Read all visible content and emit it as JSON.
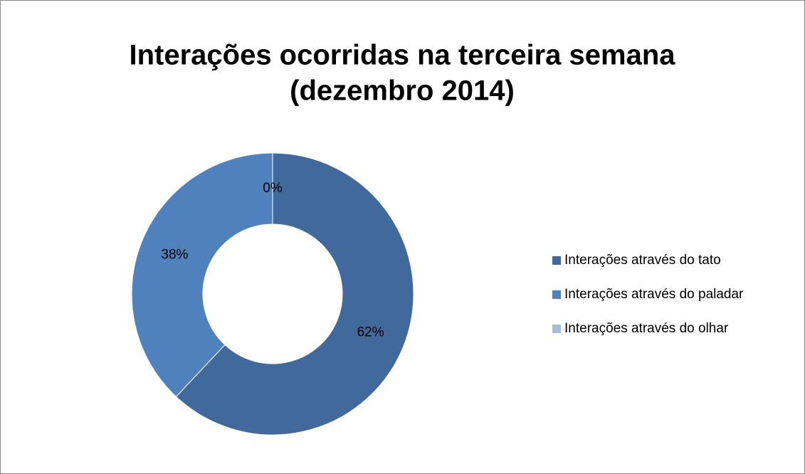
{
  "chart_data": {
    "type": "donut",
    "title": [
      "Interações ocorridas na terceira semana",
      "(dezembro 2014)"
    ],
    "categories": [
      "Interações através do tato",
      "Interações através do paladar",
      "Interações através do olhar"
    ],
    "values": [
      62,
      38,
      0
    ],
    "value_labels": [
      "62%",
      "38%",
      "0%"
    ],
    "colors": [
      "#41699c",
      "#4f81bd",
      "#a9bcd9"
    ],
    "legend": "right"
  }
}
